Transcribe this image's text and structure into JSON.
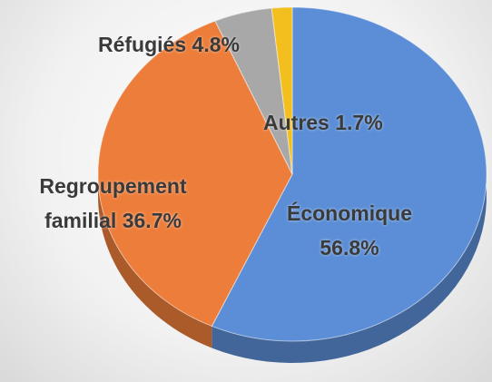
{
  "chart_data": {
    "type": "pie",
    "categories": [
      "Économique",
      "Regroupement familial",
      "Réfugiés",
      "Autres"
    ],
    "values": [
      56.8,
      36.7,
      4.8,
      1.7
    ],
    "value_labels": [
      "56.8%",
      "36.7%",
      "4.8%",
      "1.7%"
    ],
    "colors": [
      "#5b8ed6",
      "#ed7d3a",
      "#a8a8a8",
      "#f3bf1e"
    ]
  }
}
